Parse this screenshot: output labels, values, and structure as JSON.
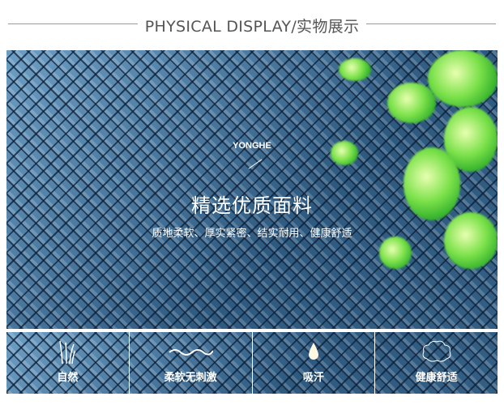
{
  "header": {
    "title": "PHYSICAL DISPLAY/实物展示"
  },
  "main": {
    "brand": "YONGHE",
    "title": "精选优质面料",
    "subtitle": "质地柔软、厚实紧密、结实耐用、健康舒适"
  },
  "features": [
    {
      "icon": "grass-icon",
      "label": "自然"
    },
    {
      "icon": "wave-icon",
      "label": "柔软无刺激"
    },
    {
      "icon": "water-drop-icon",
      "label": "吸汗"
    },
    {
      "icon": "cloud-icon",
      "label": "健康舒适"
    }
  ],
  "colors": {
    "fabric": "#3f6a8e",
    "leaf": "#7be14a",
    "text": "#ffffff"
  }
}
